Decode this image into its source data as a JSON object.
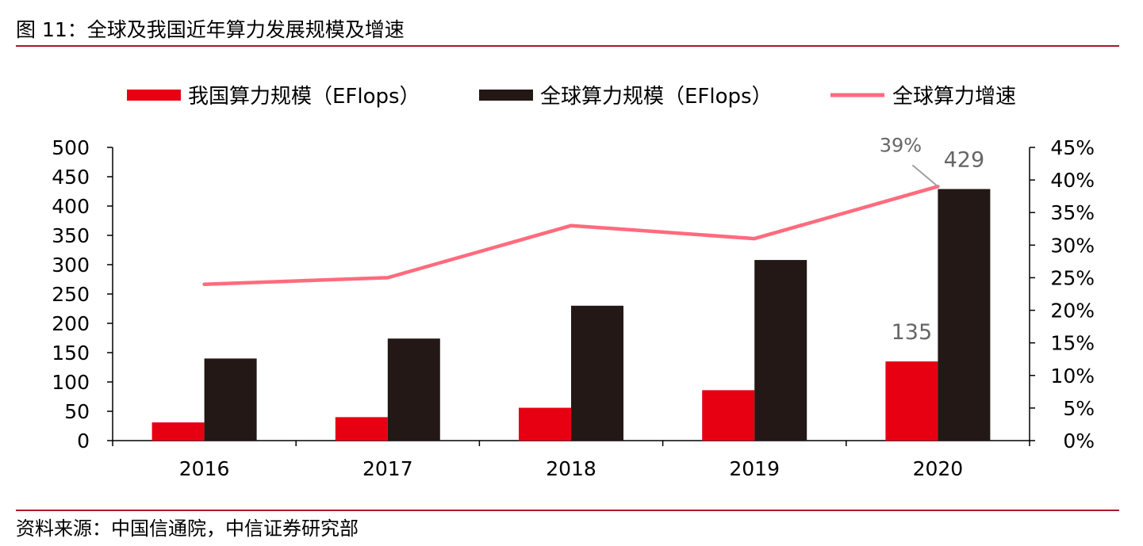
{
  "figure": {
    "title": "图 11：全球及我国近年算力发展规模及增速",
    "source": "资料来源：中国信通院，中信证券研究部"
  },
  "colors": {
    "rule": "#a6192e",
    "china_bar": "#e60012",
    "global_bar": "#231815",
    "growth_line": "#ff6b7d",
    "axis": "#000000",
    "label_gray": "#666666",
    "leader_line": "#a0a0a0"
  },
  "chart_data": {
    "type": "bar",
    "title": "",
    "categories": [
      "2016",
      "2017",
      "2018",
      "2019",
      "2020"
    ],
    "series": [
      {
        "name": "我国算力规模（EFlops）",
        "type": "bar",
        "axis": "left",
        "values": [
          31,
          40,
          56,
          86,
          135
        ]
      },
      {
        "name": "全球算力规模（EFlops）",
        "type": "bar",
        "axis": "left",
        "values": [
          140,
          174,
          230,
          308,
          429
        ]
      },
      {
        "name": "全球算力增速",
        "type": "line",
        "axis": "right",
        "values": [
          0.24,
          0.25,
          0.33,
          0.31,
          0.39
        ]
      }
    ],
    "y_left": {
      "range": [
        0,
        500
      ],
      "ticks": [
        0,
        50,
        100,
        150,
        200,
        250,
        300,
        350,
        400,
        450,
        500
      ],
      "tick_labels": [
        "0",
        "50",
        "100",
        "150",
        "200",
        "250",
        "300",
        "350",
        "400",
        "450",
        "500"
      ]
    },
    "y_right": {
      "range": [
        0,
        0.45
      ],
      "ticks": [
        0,
        0.05,
        0.1,
        0.15,
        0.2,
        0.25,
        0.3,
        0.35,
        0.4,
        0.45
      ],
      "tick_labels": [
        "0%",
        "5%",
        "10%",
        "15%",
        "20%",
        "25%",
        "30%",
        "35%",
        "40%",
        "45%"
      ]
    },
    "data_labels": [
      {
        "series": "我国算力规模（EFlops）",
        "category": "2020",
        "text": "135"
      },
      {
        "series": "全球算力规模（EFlops）",
        "category": "2020",
        "text": "429"
      },
      {
        "series": "全球算力增速",
        "category": "2020",
        "text": "39%"
      }
    ],
    "legend_position": "top",
    "grid": false
  }
}
